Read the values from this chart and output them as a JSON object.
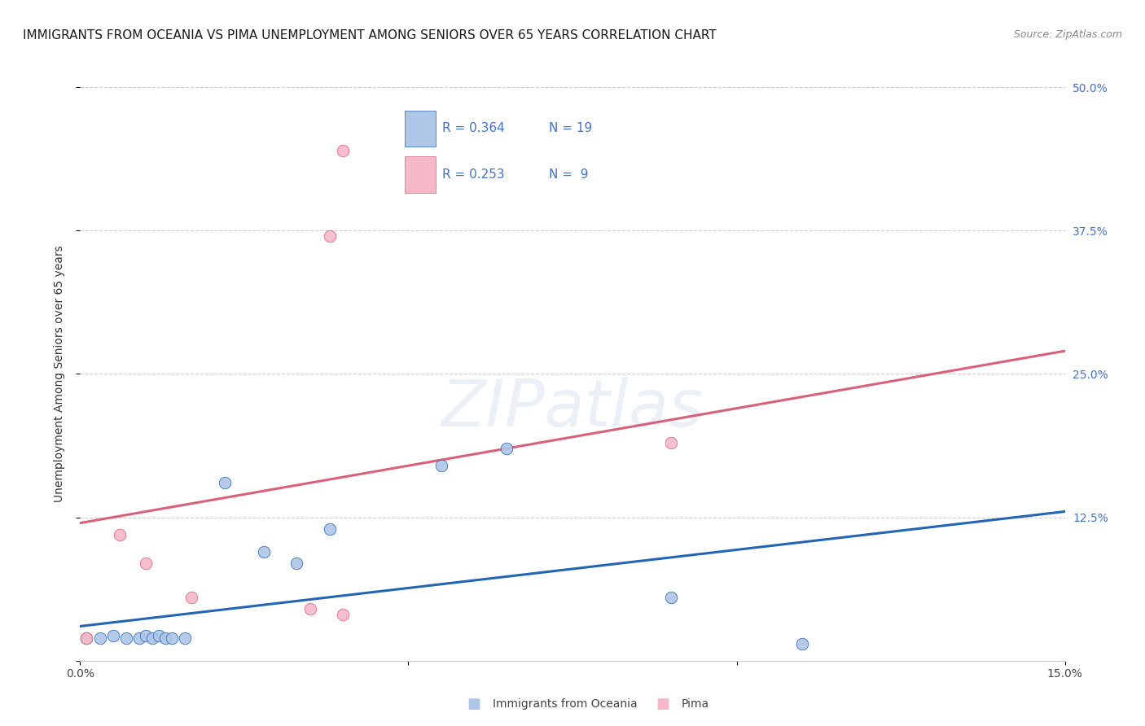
{
  "title": "IMMIGRANTS FROM OCEANIA VS PIMA UNEMPLOYMENT AMONG SENIORS OVER 65 YEARS CORRELATION CHART",
  "source": "Source: ZipAtlas.com",
  "ylabel": "Unemployment Among Seniors over 65 years",
  "xlim": [
    0.0,
    0.15
  ],
  "ylim": [
    0.0,
    0.5
  ],
  "xticks": [
    0.0,
    0.05,
    0.1,
    0.15
  ],
  "yticks": [
    0.0,
    0.125,
    0.25,
    0.375,
    0.5
  ],
  "xtick_labels": [
    "0.0%",
    "",
    "",
    "15.0%"
  ],
  "ytick_labels_right": [
    "",
    "12.5%",
    "25.0%",
    "37.5%",
    "50.0%"
  ],
  "blue_scatter_x": [
    0.001,
    0.003,
    0.005,
    0.007,
    0.009,
    0.01,
    0.011,
    0.012,
    0.013,
    0.014,
    0.016,
    0.022,
    0.028,
    0.033,
    0.038,
    0.055,
    0.065,
    0.09,
    0.11
  ],
  "blue_scatter_y": [
    0.02,
    0.02,
    0.022,
    0.02,
    0.02,
    0.022,
    0.02,
    0.022,
    0.02,
    0.02,
    0.02,
    0.155,
    0.095,
    0.085,
    0.115,
    0.17,
    0.185,
    0.055,
    0.015
  ],
  "pink_scatter_x": [
    0.001,
    0.006,
    0.01,
    0.017,
    0.035,
    0.04,
    0.04,
    0.09,
    0.038
  ],
  "pink_scatter_y": [
    0.02,
    0.11,
    0.085,
    0.055,
    0.045,
    0.04,
    0.445,
    0.19,
    0.37
  ],
  "blue_line_x": [
    0.0,
    0.15
  ],
  "blue_line_y": [
    0.03,
    0.13
  ],
  "pink_line_x": [
    0.0,
    0.15
  ],
  "pink_line_y": [
    0.12,
    0.27
  ],
  "blue_color": "#aec6e8",
  "pink_color": "#f4b8c8",
  "blue_line_color": "#2464b4",
  "pink_line_color": "#d9607a",
  "marker_size": 110,
  "watermark": "ZIPatlas",
  "background_color": "#ffffff",
  "grid_color": "#c8c8c8",
  "title_fontsize": 11,
  "axis_label_fontsize": 10,
  "tick_fontsize": 10,
  "legend_text_color": "#4472c4",
  "legend_label_color": "#333333"
}
